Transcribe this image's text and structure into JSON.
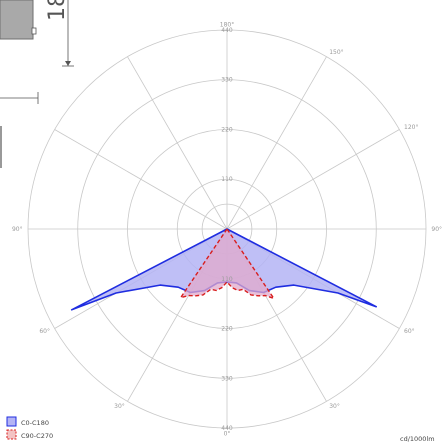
{
  "dimension_label": "18",
  "unit": "cd/1000lm",
  "colors": {
    "grid": "#c8c8c8",
    "series_c0_stroke": "#1f2de0",
    "series_c0_fill": "#b4b4f5",
    "series_c90_stroke": "#d81e1e",
    "series_c90_fill": "#e2aacb"
  },
  "chart_data": {
    "type": "polar",
    "radial_ticks": [
      "110",
      "220",
      "330",
      "440"
    ],
    "angle_labels": [
      "180°",
      "150°",
      "120°",
      "90°",
      "90°",
      "60°",
      "60°",
      "30°",
      "30°",
      "0°"
    ],
    "series": [
      {
        "name": "C0-C180",
        "points": [
          [
            -62.5,
            387
          ],
          [
            -60,
            283
          ],
          [
            -50,
            193
          ],
          [
            -40,
            168
          ],
          [
            -30,
            162
          ],
          [
            -20,
            145
          ],
          [
            -10,
            121
          ],
          [
            0,
            117
          ],
          [
            10,
            121
          ],
          [
            20,
            145
          ],
          [
            30,
            162
          ],
          [
            40,
            168
          ],
          [
            50,
            193
          ],
          [
            60,
            283
          ],
          [
            62.5,
            372
          ]
        ]
      },
      {
        "name": "C90-C270",
        "points": [
          [
            -34,
            183
          ],
          [
            -30,
            170
          ],
          [
            -25,
            163
          ],
          [
            -20,
            155
          ],
          [
            -15,
            138
          ],
          [
            -10,
            138
          ],
          [
            -5,
            130
          ],
          [
            0,
            117
          ],
          [
            5,
            130
          ],
          [
            10,
            138
          ],
          [
            15,
            138
          ],
          [
            20,
            155
          ],
          [
            25,
            163
          ],
          [
            30,
            170
          ],
          [
            34,
            185
          ]
        ]
      }
    ]
  }
}
